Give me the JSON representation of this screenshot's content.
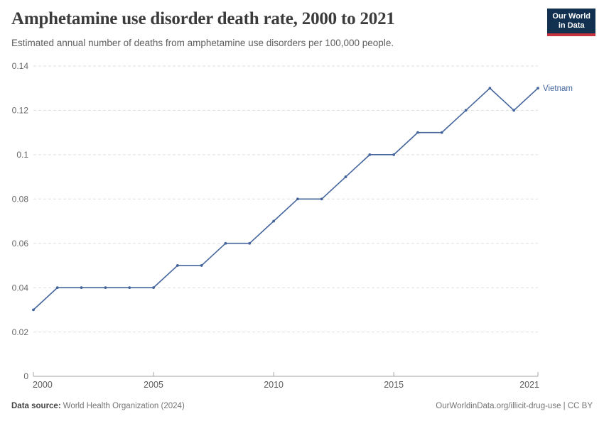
{
  "header": {
    "title": "Amphetamine use disorder death rate, 2000 to 2021",
    "subtitle": "Estimated annual number of deaths from amphetamine use disorders per 100,000 people.",
    "logo": {
      "line1": "Our World",
      "line2": "in Data"
    }
  },
  "chart_data": {
    "type": "line",
    "title": "Amphetamine use disorder death rate, 2000 to 2021",
    "xlabel": "",
    "ylabel": "",
    "xlim": [
      2000,
      2021
    ],
    "ylim": [
      0,
      0.14
    ],
    "grid": "horizontal-dashed",
    "legend_position": "end-of-line-label",
    "x": [
      2000,
      2001,
      2002,
      2003,
      2004,
      2005,
      2006,
      2007,
      2008,
      2009,
      2010,
      2011,
      2012,
      2013,
      2014,
      2015,
      2016,
      2017,
      2018,
      2019,
      2020,
      2021
    ],
    "series": [
      {
        "name": "Vietnam",
        "color": "#44659c",
        "values": [
          0.03,
          0.04,
          0.04,
          0.04,
          0.04,
          0.04,
          0.05,
          0.05,
          0.06,
          0.06,
          0.07,
          0.08,
          0.08,
          0.09,
          0.1,
          0.1,
          0.11,
          0.11,
          0.12,
          0.13,
          0.12,
          0.13
        ]
      }
    ],
    "x_ticks": [
      {
        "value": 2000,
        "label": "2000"
      },
      {
        "value": 2005,
        "label": "2005"
      },
      {
        "value": 2010,
        "label": "2010"
      },
      {
        "value": 2015,
        "label": "2015"
      },
      {
        "value": 2021,
        "label": "2021"
      }
    ],
    "y_ticks": [
      {
        "value": 0,
        "label": "0"
      },
      {
        "value": 0.02,
        "label": "0.02"
      },
      {
        "value": 0.04,
        "label": "0.04"
      },
      {
        "value": 0.06,
        "label": "0.06"
      },
      {
        "value": 0.08,
        "label": "0.08"
      },
      {
        "value": 0.1,
        "label": "0.1"
      },
      {
        "value": 0.12,
        "label": "0.12"
      },
      {
        "value": 0.14,
        "label": "0.14"
      }
    ]
  },
  "colors": {
    "series": "#44659c",
    "grid": "#dedede",
    "axis": "#a5a5a5",
    "y_label": "#686868",
    "x_label": "#5b5b5b",
    "title": "#3b3b3b",
    "subtitle": "#5e5e5e",
    "footer": "#757575",
    "logo_bg": "#12304f",
    "logo_accent": "#c4323f"
  },
  "footer": {
    "datasource_label": "Data source:",
    "datasource_value": "World Health Organization (2024)",
    "credit": "OurWorldinData.org/illicit-drug-use | CC BY"
  }
}
